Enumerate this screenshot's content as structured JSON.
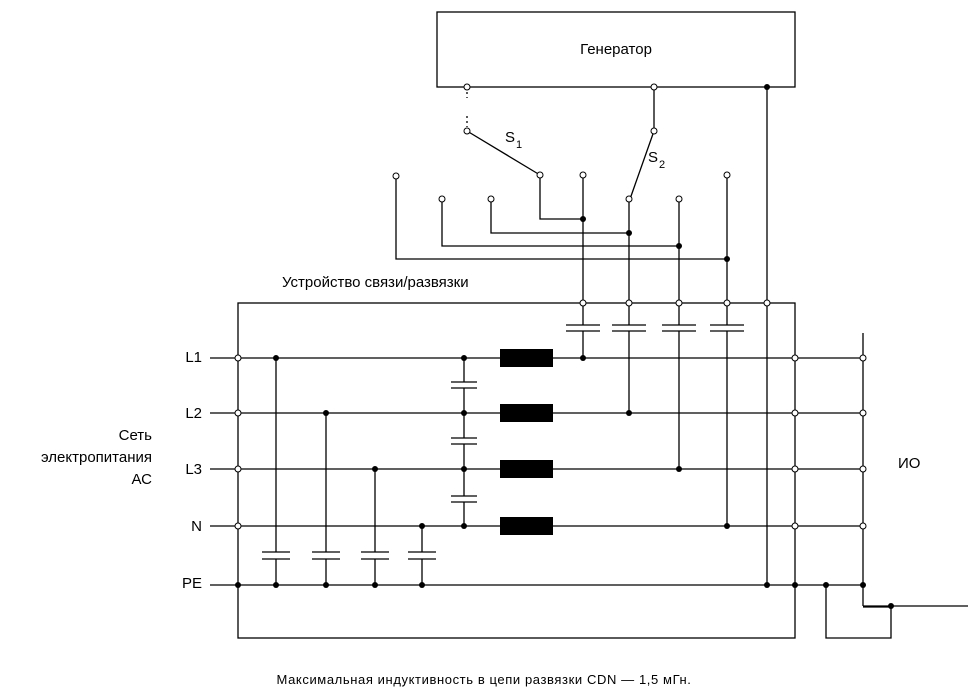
{
  "generator": {
    "label": "Генератор"
  },
  "switches": {
    "s1_letter": "S",
    "s1_sub": "1",
    "s2_letter": "S",
    "s2_sub": "2"
  },
  "cdn": {
    "label": "Устройство связи/развязки"
  },
  "mains": {
    "line1": "Сеть",
    "line2": "электропитания",
    "line3": "АС"
  },
  "conductors": {
    "l1": "L1",
    "l2": "L2",
    "l3": "L3",
    "n": "N",
    "pe": "PE"
  },
  "eut": {
    "label": "ИО"
  },
  "caption": "Максимальная индуктивность в цепи развязки CDN — 1,5 мГн."
}
